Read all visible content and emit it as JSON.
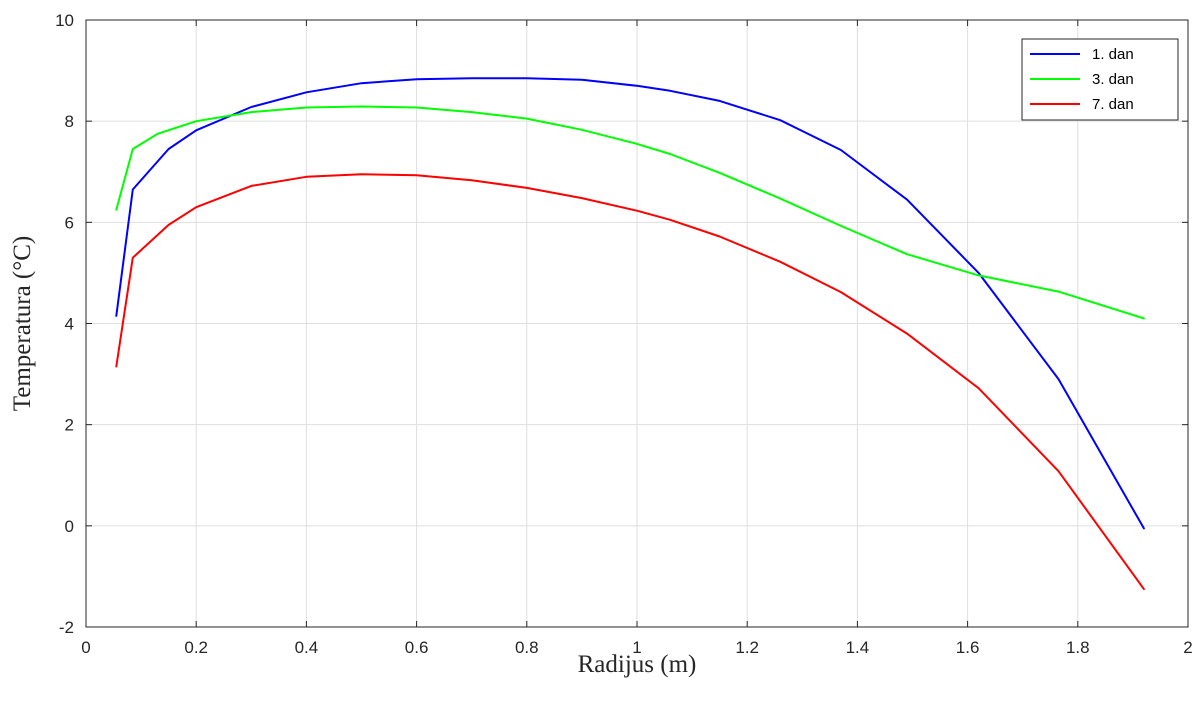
{
  "chart_data": {
    "type": "line",
    "title": "",
    "xlabel": "Radijus (m)",
    "ylabel": "Temperatura (°C)",
    "xlim": [
      0,
      2
    ],
    "ylim": [
      -2,
      10
    ],
    "xticks": [
      "0",
      "0.2",
      "0.4",
      "0.6",
      "0.8",
      "1",
      "1.2",
      "1.4",
      "1.6",
      "1.8",
      "2"
    ],
    "yticks": [
      "-2",
      "0",
      "2",
      "4",
      "6",
      "8",
      "10"
    ],
    "grid": true,
    "legend_position": "top-right",
    "series": [
      {
        "name": "1. dan",
        "color": "#0000ff",
        "x": [
          0.055,
          0.085,
          0.15,
          0.2,
          0.3,
          0.4,
          0.5,
          0.6,
          0.7,
          0.8,
          0.9,
          1.0,
          1.06,
          1.15,
          1.26,
          1.37,
          1.49,
          1.62,
          1.765,
          1.92
        ],
        "y": [
          4.15,
          6.65,
          7.45,
          7.82,
          8.28,
          8.57,
          8.75,
          8.83,
          8.85,
          8.85,
          8.82,
          8.7,
          8.6,
          8.4,
          8.02,
          7.43,
          6.45,
          5.0,
          2.9,
          -0.05
        ]
      },
      {
        "name": "3. dan",
        "color": "#00ff00",
        "x": [
          0.055,
          0.085,
          0.13,
          0.2,
          0.3,
          0.4,
          0.5,
          0.6,
          0.7,
          0.8,
          0.9,
          1.0,
          1.06,
          1.15,
          1.26,
          1.37,
          1.49,
          1.62,
          1.765,
          1.92
        ],
        "y": [
          6.25,
          7.45,
          7.75,
          8.0,
          8.18,
          8.27,
          8.29,
          8.27,
          8.18,
          8.05,
          7.83,
          7.55,
          7.35,
          6.98,
          6.47,
          5.93,
          5.37,
          4.95,
          4.63,
          4.1
        ]
      },
      {
        "name": "7. dan",
        "color": "#ff0000",
        "x": [
          0.055,
          0.085,
          0.15,
          0.2,
          0.3,
          0.4,
          0.5,
          0.6,
          0.7,
          0.8,
          0.9,
          1.0,
          1.06,
          1.15,
          1.26,
          1.37,
          1.49,
          1.62,
          1.765,
          1.92
        ],
        "y": [
          3.15,
          5.3,
          5.95,
          6.3,
          6.72,
          6.9,
          6.95,
          6.93,
          6.83,
          6.68,
          6.48,
          6.23,
          6.05,
          5.72,
          5.22,
          4.62,
          3.8,
          2.72,
          1.08,
          -1.25
        ]
      }
    ]
  }
}
